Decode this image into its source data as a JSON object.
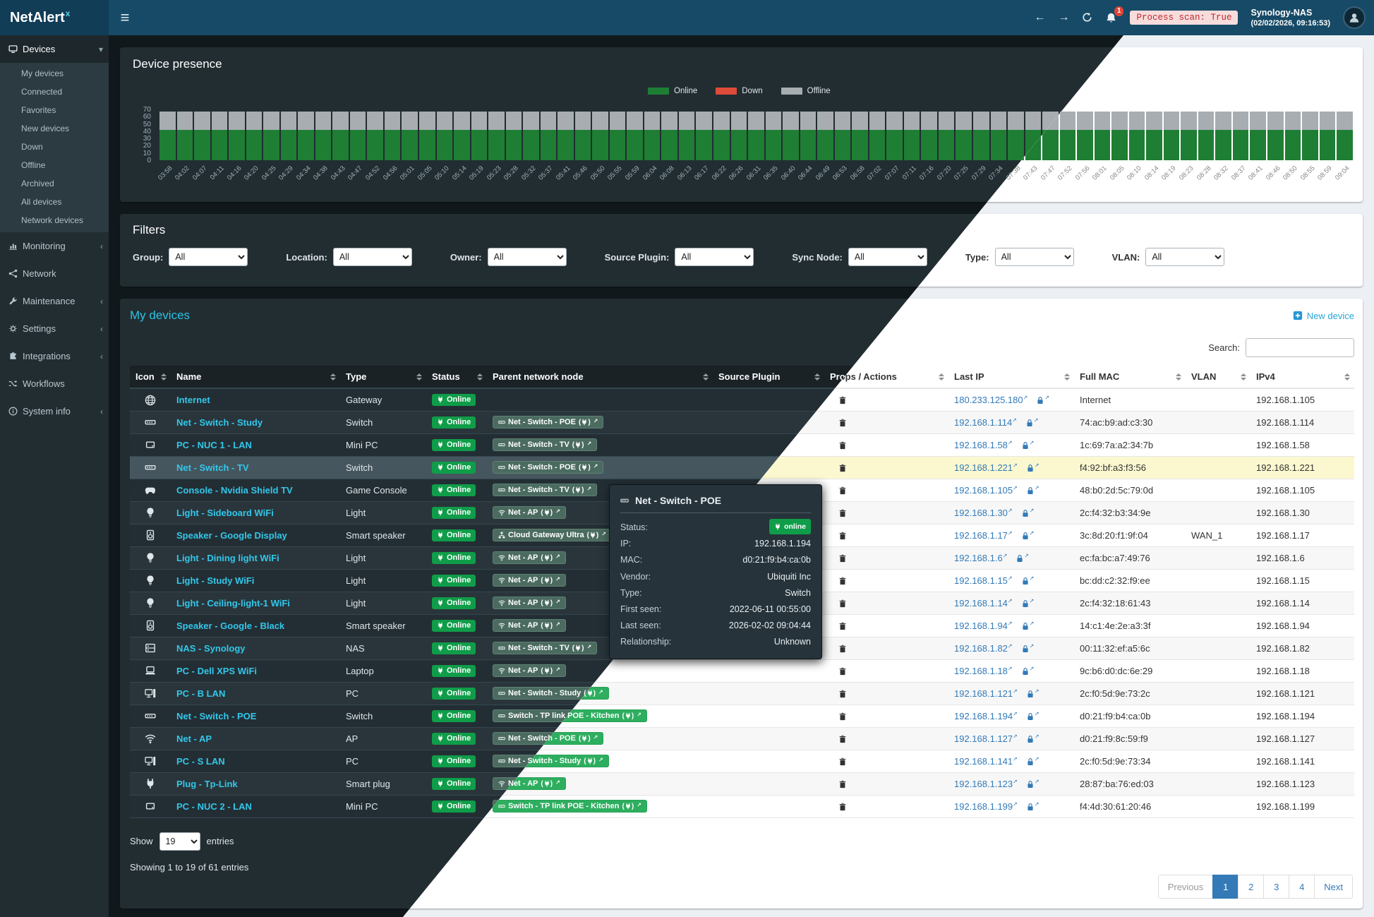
{
  "header": {
    "app_name": "NetAlert",
    "app_name_sup": "x",
    "notification_count": "1",
    "process_scan_badge": "Process scan: True",
    "host_name": "Synology-NAS",
    "host_time": "(02/02/2026, 09:16:53)"
  },
  "sidebar": {
    "sections": [
      {
        "label": "Devices",
        "icon": "monitor",
        "state": "expanded",
        "active": true,
        "children": [
          "My devices",
          "Connected",
          "Favorites",
          "New devices",
          "Down",
          "Offline",
          "Archived",
          "All devices",
          "Network devices"
        ]
      },
      {
        "label": "Monitoring",
        "icon": "chart-bars",
        "state": "collapsed"
      },
      {
        "label": "Network",
        "icon": "share-nodes"
      },
      {
        "label": "Maintenance",
        "icon": "wrench",
        "state": "collapsed"
      },
      {
        "label": "Settings",
        "icon": "gear",
        "state": "collapsed"
      },
      {
        "label": "Integrations",
        "icon": "puzzle",
        "state": "collapsed"
      },
      {
        "label": "Workflows",
        "icon": "shuffle"
      },
      {
        "label": "System info",
        "icon": "info",
        "state": "collapsed"
      }
    ]
  },
  "presence": {
    "title": "Device presence",
    "legend": [
      {
        "label": "Online",
        "color": "#1e7e34"
      },
      {
        "label": "Down",
        "color": "#dd4b39"
      },
      {
        "label": "Offline",
        "color": "#a8adb2"
      }
    ]
  },
  "chart_data": {
    "type": "bar",
    "stacked": true,
    "title": "Device presence",
    "xlabel": "",
    "ylabel": "",
    "ylim": [
      0,
      70
    ],
    "yticks": [
      70,
      60,
      50,
      40,
      30,
      20,
      10,
      0
    ],
    "legend_position": "top-center",
    "x": [
      "03:58",
      "04:02",
      "04:07",
      "04:11",
      "04:16",
      "04:20",
      "04:25",
      "04:29",
      "04:34",
      "04:38",
      "04:43",
      "04:47",
      "04:52",
      "04:56",
      "05:01",
      "05:05",
      "05:10",
      "05:14",
      "05:19",
      "05:23",
      "05:28",
      "05:32",
      "05:37",
      "05:41",
      "05:46",
      "05:50",
      "05:55",
      "05:59",
      "06:04",
      "06:08",
      "06:13",
      "06:17",
      "06:22",
      "06:26",
      "06:31",
      "06:35",
      "06:40",
      "06:44",
      "06:49",
      "06:53",
      "06:58",
      "07:02",
      "07:07",
      "07:11",
      "07:16",
      "07:20",
      "07:25",
      "07:29",
      "07:34",
      "07:38",
      "07:43",
      "07:47",
      "07:52",
      "07:56",
      "08:01",
      "08:05",
      "08:10",
      "08:14",
      "08:19",
      "08:23",
      "08:28",
      "08:32",
      "08:37",
      "08:41",
      "08:46",
      "08:50",
      "08:55",
      "08:59",
      "09:04"
    ],
    "series": [
      {
        "name": "Online",
        "color": "#1e7e34",
        "values": [
          42,
          42,
          42,
          42,
          42,
          42,
          42,
          42,
          42,
          42,
          42,
          42,
          42,
          42,
          42,
          42,
          42,
          42,
          42,
          42,
          42,
          42,
          42,
          42,
          42,
          42,
          42,
          42,
          42,
          42,
          42,
          42,
          42,
          42,
          42,
          42,
          42,
          42,
          42,
          42,
          42,
          42,
          42,
          42,
          42,
          42,
          42,
          42,
          42,
          42,
          42,
          42,
          42,
          42,
          42,
          42,
          42,
          42,
          42,
          42,
          42,
          42,
          42,
          42,
          42,
          42,
          42,
          42,
          42
        ]
      },
      {
        "name": "Down",
        "color": "#dd4b39",
        "values": [
          0,
          0,
          0,
          0,
          0,
          0,
          0,
          0,
          0,
          0,
          0,
          0,
          0,
          0,
          0,
          0,
          0,
          0,
          0,
          0,
          0,
          0,
          0,
          0,
          0,
          0,
          0,
          0,
          0,
          0,
          0,
          0,
          0,
          0,
          0,
          0,
          0,
          0,
          0,
          0,
          0,
          0,
          0,
          0,
          0,
          0,
          0,
          0,
          0,
          0,
          0,
          0,
          0,
          0,
          0,
          0,
          0,
          0,
          0,
          0,
          0,
          0,
          0,
          0,
          0,
          0,
          0,
          0,
          0
        ]
      },
      {
        "name": "Offline",
        "color": "#a8adb2",
        "values": [
          25,
          25,
          25,
          25,
          25,
          25,
          25,
          25,
          25,
          25,
          25,
          25,
          25,
          25,
          25,
          25,
          25,
          25,
          25,
          25,
          25,
          25,
          25,
          25,
          25,
          25,
          25,
          25,
          25,
          25,
          25,
          25,
          25,
          25,
          25,
          25,
          25,
          25,
          25,
          25,
          25,
          25,
          25,
          25,
          25,
          25,
          25,
          25,
          25,
          25,
          25,
          25,
          25,
          25,
          25,
          25,
          25,
          25,
          25,
          25,
          25,
          25,
          25,
          25,
          25,
          25,
          25,
          25,
          25
        ]
      }
    ]
  },
  "filters": {
    "title": "Filters",
    "items": [
      {
        "label": "Group:",
        "value": "All"
      },
      {
        "label": "Location:",
        "value": "All"
      },
      {
        "label": "Owner:",
        "value": "All"
      },
      {
        "label": "Source Plugin:",
        "value": "All"
      },
      {
        "label": "Sync Node:",
        "value": "All"
      },
      {
        "label": "Type:",
        "value": "All"
      },
      {
        "label": "VLAN:",
        "value": "All"
      }
    ]
  },
  "devices": {
    "title": "My devices",
    "new_device_label": "New device",
    "search_label": "Search:",
    "columns": [
      "Icon",
      "Name",
      "Type",
      "Status",
      "Parent network node",
      "Source Plugin",
      "Props / Actions",
      "Last IP",
      "Full MAC",
      "VLAN",
      "IPv4"
    ],
    "rows": [
      {
        "icon": "globe",
        "name": "Internet",
        "type": "Gateway",
        "status": "Online",
        "parent": null,
        "plugin": "",
        "last_ip": "180.233.125.180",
        "mac": "Internet",
        "vlan": "",
        "ipv4": "192.168.1.105"
      },
      {
        "icon": "switch",
        "name": "Net - Switch - Study",
        "type": "Switch",
        "status": "Online",
        "parent": {
          "label": "Net - Switch - POE",
          "icon": "switch"
        },
        "plugin": "",
        "last_ip": "192.168.1.114",
        "mac": "74:ac:b9:ad:c3:30",
        "vlan": "",
        "ipv4": "192.168.1.114"
      },
      {
        "icon": "minipc",
        "name": "PC - NUC 1 - LAN",
        "type": "Mini PC",
        "status": "Online",
        "parent": {
          "label": "Net - Switch - TV",
          "icon": "switch"
        },
        "plugin": "",
        "last_ip": "192.168.1.58",
        "mac": "1c:69:7a:a2:34:7b",
        "vlan": "",
        "ipv4": "192.168.1.58"
      },
      {
        "icon": "switch",
        "name": "Net - Switch - TV",
        "type": "Switch",
        "status": "Online",
        "parent": {
          "label": "Net - Switch - POE",
          "icon": "switch"
        },
        "plugin": "",
        "last_ip": "192.168.1.221",
        "mac": "f4:92:bf:a3:f3:56",
        "vlan": "",
        "ipv4": "192.168.1.221",
        "highlighted": true
      },
      {
        "icon": "gamepad",
        "name": "Console - Nvidia Shield TV",
        "type": "Game Console",
        "status": "Online",
        "parent": {
          "label": "Net - Switch - TV",
          "icon": "switch"
        },
        "plugin": "",
        "last_ip": "192.168.1.105",
        "mac": "48:b0:2d:5c:79:0d",
        "vlan": "",
        "ipv4": "192.168.1.105"
      },
      {
        "icon": "bulb",
        "name": "Light - Sideboard WiFi",
        "type": "Light",
        "status": "Online",
        "parent": {
          "label": "Net - AP",
          "icon": "wifi"
        },
        "plugin": "",
        "last_ip": "192.168.1.30",
        "mac": "2c:f4:32:b3:34:9e",
        "vlan": "",
        "ipv4": "192.168.1.30"
      },
      {
        "icon": "speaker",
        "name": "Speaker - Google Display",
        "type": "Smart speaker",
        "status": "Online",
        "parent": {
          "label": "Cloud Gateway Ultra",
          "icon": "sitemap"
        },
        "plugin": "",
        "last_ip": "192.168.1.17",
        "mac": "3c:8d:20:f1:9f:04",
        "vlan": "WAN_1",
        "ipv4": "192.168.1.17"
      },
      {
        "icon": "bulb",
        "name": "Light - Dining light WiFi",
        "type": "Light",
        "status": "Online",
        "parent": {
          "label": "Net - AP",
          "icon": "wifi"
        },
        "plugin": "",
        "last_ip": "192.168.1.6",
        "mac": "ec:fa:bc:a7:49:76",
        "vlan": "",
        "ipv4": "192.168.1.6"
      },
      {
        "icon": "bulb",
        "name": "Light - Study WiFi",
        "type": "Light",
        "status": "Online",
        "parent": {
          "label": "Net - AP",
          "icon": "wifi"
        },
        "plugin": "",
        "last_ip": "192.168.1.15",
        "mac": "bc:dd:c2:32:f9:ee",
        "vlan": "",
        "ipv4": "192.168.1.15"
      },
      {
        "icon": "bulb",
        "name": "Light - Ceiling-light-1 WiFi",
        "type": "Light",
        "status": "Online",
        "parent": {
          "label": "Net - AP",
          "icon": "wifi"
        },
        "plugin": "",
        "last_ip": "192.168.1.14",
        "mac": "2c:f4:32:18:61:43",
        "vlan": "",
        "ipv4": "192.168.1.14"
      },
      {
        "icon": "speaker",
        "name": "Speaker - Google - Black",
        "type": "Smart speaker",
        "status": "Online",
        "parent": {
          "label": "Net - AP",
          "icon": "wifi"
        },
        "plugin": "",
        "last_ip": "192.168.1.94",
        "mac": "14:c1:4e:2e:a3:3f",
        "vlan": "",
        "ipv4": "192.168.1.94"
      },
      {
        "icon": "nas",
        "name": "NAS - Synology",
        "type": "NAS",
        "status": "Online",
        "parent": {
          "label": "Net - Switch - TV",
          "icon": "switch"
        },
        "plugin": "",
        "last_ip": "192.168.1.82",
        "mac": "00:11:32:ef:a5:6c",
        "vlan": "",
        "ipv4": "192.168.1.82"
      },
      {
        "icon": "laptop",
        "name": "PC - Dell XPS WiFi",
        "type": "Laptop",
        "status": "Online",
        "parent": {
          "label": "Net - AP",
          "icon": "wifi"
        },
        "plugin": "",
        "last_ip": "192.168.1.18",
        "mac": "9c:b6:d0:dc:6e:29",
        "vlan": "",
        "ipv4": "192.168.1.18"
      },
      {
        "icon": "desktop",
        "name": "PC - B LAN",
        "type": "PC",
        "status": "Online",
        "parent": {
          "label": "Net - Switch - Study",
          "icon": "switch"
        },
        "plugin": "",
        "last_ip": "192.168.1.121",
        "mac": "2c:f0:5d:9e:73:2c",
        "vlan": "",
        "ipv4": "192.168.1.121"
      },
      {
        "icon": "switch",
        "name": "Net - Switch - POE",
        "type": "Switch",
        "status": "Online",
        "parent": {
          "label": "Switch - TP link POE - Kitchen",
          "icon": "switch"
        },
        "plugin": "",
        "last_ip": "192.168.1.194",
        "mac": "d0:21:f9:b4:ca:0b",
        "vlan": "",
        "ipv4": "192.168.1.194"
      },
      {
        "icon": "wifi",
        "name": "Net - AP",
        "type": "AP",
        "status": "Online",
        "parent": {
          "label": "Net - Switch - POE",
          "icon": "switch"
        },
        "plugin": "",
        "last_ip": "192.168.1.127",
        "mac": "d0:21:f9:8c:59:f9",
        "vlan": "",
        "ipv4": "192.168.1.127"
      },
      {
        "icon": "desktop",
        "name": "PC - S LAN",
        "type": "PC",
        "status": "Online",
        "parent": {
          "label": "Net - Switch - Study",
          "icon": "switch"
        },
        "plugin": "",
        "last_ip": "192.168.1.141",
        "mac": "2c:f0:5d:9e:73:34",
        "vlan": "",
        "ipv4": "192.168.1.141"
      },
      {
        "icon": "plug",
        "name": "Plug - Tp-Link",
        "type": "Smart plug",
        "status": "Online",
        "parent": {
          "label": "Net - AP",
          "icon": "wifi"
        },
        "plugin": "",
        "last_ip": "192.168.1.123",
        "mac": "28:87:ba:76:ed:03",
        "vlan": "",
        "ipv4": "192.168.1.123"
      },
      {
        "icon": "minipc",
        "name": "PC - NUC 2 - LAN",
        "type": "Mini PC",
        "status": "Online",
        "parent": {
          "label": "Switch - TP link POE - Kitchen",
          "icon": "switch"
        },
        "plugin": "",
        "last_ip": "192.168.1.199",
        "mac": "f4:4d:30:61:20:46",
        "vlan": "",
        "ipv4": "192.168.1.199"
      }
    ],
    "show_label": "Show",
    "show_value": "19",
    "entries_label": "entries",
    "summary": "Showing 1 to 19 of 61 entries",
    "pagination": [
      "Previous",
      "1",
      "2",
      "3",
      "4",
      "Next"
    ],
    "active_page": "1"
  },
  "tooltip": {
    "title": "Net - Switch - POE",
    "icon": "switch",
    "rows": [
      {
        "label": "Status:",
        "value": "online",
        "type": "badge"
      },
      {
        "label": "IP:",
        "value": "192.168.1.194"
      },
      {
        "label": "MAC:",
        "value": "d0:21:f9:b4:ca:0b"
      },
      {
        "label": "Vendor:",
        "value": "Ubiquiti Inc"
      },
      {
        "label": "Type:",
        "value": "Switch"
      },
      {
        "label": "First seen:",
        "value": "2022-06-11 00:55:00"
      },
      {
        "label": "Last seen:",
        "value": "2026-02-02 09:04:44"
      },
      {
        "label": "Relationship:",
        "value": "Unknown"
      }
    ]
  }
}
